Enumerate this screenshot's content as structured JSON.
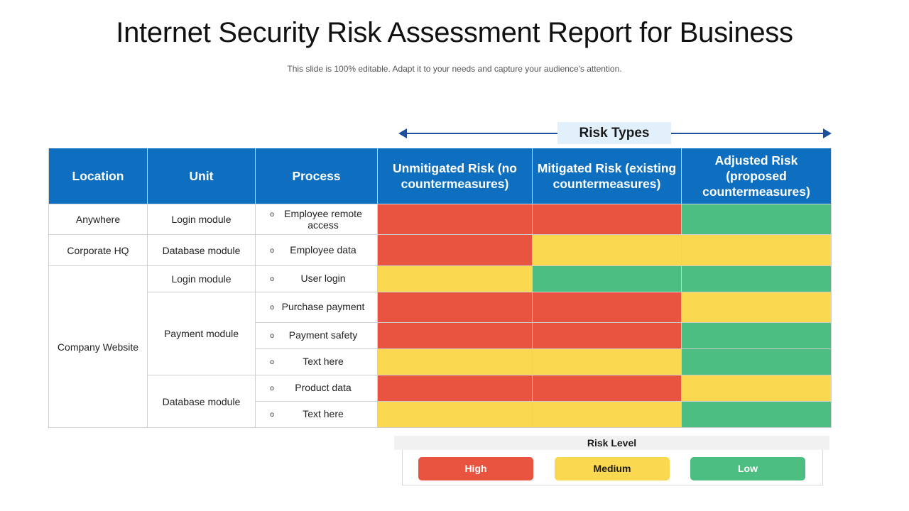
{
  "title": "Internet Security Risk Assessment Report for Business",
  "subtitle": "This slide is 100% editable. Adapt it to your needs and capture your audience's attention.",
  "risk_types_label": "Risk Types",
  "columns": {
    "location": "Location",
    "unit": "Unit",
    "process": "Process",
    "unmitigated": "Unmitigated Risk (no countermeasures)",
    "mitigated": "Mitigated Risk (existing countermeasures)",
    "adjusted": "Adjusted Risk (proposed countermeasures)"
  },
  "locations": [
    "Anywhere",
    "Corporate HQ",
    "Company Website"
  ],
  "units": [
    "Login module",
    "Database module",
    "Login module",
    "Payment module",
    "Database module"
  ],
  "processes": [
    "Employee remote access",
    "Employee data",
    "User login",
    "Purchase payment",
    "Payment safety",
    "Text here",
    "Product data",
    "Text here"
  ],
  "bullet": "o",
  "risk_colors": {
    "high": "#e85440",
    "medium": "#fad84f",
    "low": "#4cbe82",
    "header": "#0e6fc1"
  },
  "risk_matrix": [
    [
      "high",
      "high",
      "low"
    ],
    [
      "high",
      "medium",
      "medium"
    ],
    [
      "medium",
      "low",
      "low"
    ],
    [
      "high",
      "high",
      "medium"
    ],
    [
      "high",
      "high",
      "low"
    ],
    [
      "medium",
      "medium",
      "low"
    ],
    [
      "high",
      "high",
      "medium"
    ],
    [
      "medium",
      "medium",
      "low"
    ]
  ],
  "legend": {
    "title": "Risk Level",
    "high": "High",
    "medium": "Medium",
    "low": "Low"
  }
}
